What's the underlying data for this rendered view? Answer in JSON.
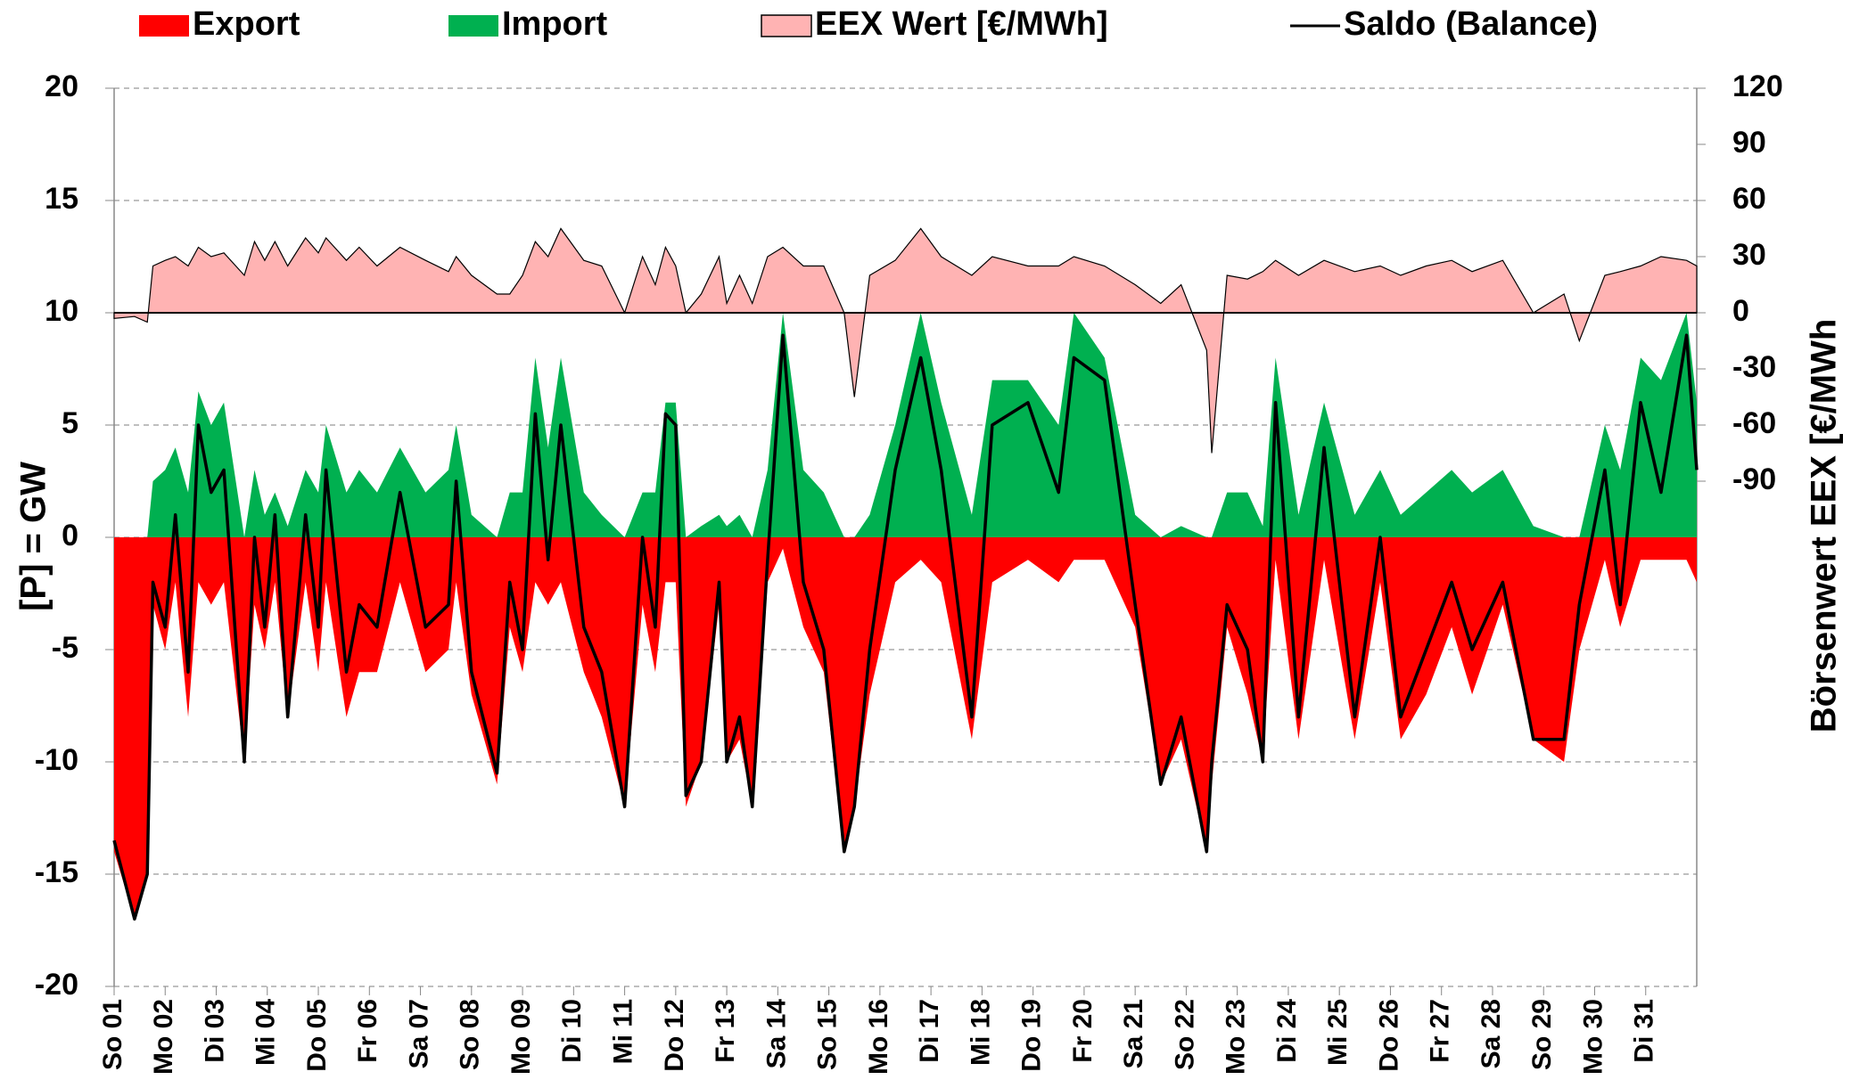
{
  "chart_data": {
    "type": "area",
    "y_label": "[P]  = GW",
    "y2_label": "Börsenwert  EEX  [€/MWh",
    "xlim": [
      0,
      31
    ],
    "xticks": [
      {
        "value": 0,
        "label": "So 01"
      },
      {
        "value": 1,
        "label": "Mo 02"
      },
      {
        "value": 2,
        "label": "Di 03"
      },
      {
        "value": 3,
        "label": "Mi 04"
      },
      {
        "value": 4,
        "label": "Do 05"
      },
      {
        "value": 5,
        "label": "Fr 06"
      },
      {
        "value": 6,
        "label": "Sa 07"
      },
      {
        "value": 7,
        "label": "So 08"
      },
      {
        "value": 8,
        "label": "Mo 09"
      },
      {
        "value": 9,
        "label": "Di 10"
      },
      {
        "value": 10,
        "label": "Mi 11"
      },
      {
        "value": 11,
        "label": "Do 12"
      },
      {
        "value": 12,
        "label": "Fr 13"
      },
      {
        "value": 13,
        "label": "Sa 14"
      },
      {
        "value": 14,
        "label": "So 15"
      },
      {
        "value": 15,
        "label": "Mo 16"
      },
      {
        "value": 16,
        "label": "Di 17"
      },
      {
        "value": 17,
        "label": "Mi 18"
      },
      {
        "value": 18,
        "label": "Do 19"
      },
      {
        "value": 19,
        "label": "Fr 20"
      },
      {
        "value": 20,
        "label": "Sa 21"
      },
      {
        "value": 21,
        "label": "So 22"
      },
      {
        "value": 22,
        "label": "Mo 23"
      },
      {
        "value": 23,
        "label": "Di 24"
      },
      {
        "value": 24,
        "label": "Mi 25"
      },
      {
        "value": 25,
        "label": "Do 26"
      },
      {
        "value": 26,
        "label": "Fr 27"
      },
      {
        "value": 27,
        "label": "Sa 28"
      },
      {
        "value": 28,
        "label": "So 29"
      },
      {
        "value": 29,
        "label": "Mo 30"
      },
      {
        "value": 30,
        "label": "Di 31"
      }
    ],
    "ylim": [
      -20,
      20
    ],
    "yticks": [
      -20,
      -15,
      -10,
      -5,
      0,
      5,
      10,
      15,
      20
    ],
    "y2lim": [
      -360,
      120
    ],
    "y2ticks": [
      -90,
      -60,
      -30,
      0,
      30,
      60,
      90,
      120
    ],
    "negative_tick_color": "#ff0000",
    "grid": true,
    "x": [
      0,
      0.4,
      0.65,
      0.76,
      1.0,
      1.2,
      1.45,
      1.65,
      1.9,
      2.15,
      2.55,
      2.75,
      2.95,
      3.15,
      3.4,
      3.75,
      4.0,
      4.15,
      4.55,
      4.8,
      5.15,
      5.6,
      6.1,
      6.55,
      6.7,
      7.0,
      7.5,
      7.75,
      8.0,
      8.25,
      8.5,
      8.75,
      9.2,
      9.55,
      10.0,
      10.35,
      10.6,
      10.8,
      11.0,
      11.2,
      11.5,
      11.85,
      12.0,
      12.25,
      12.5,
      12.8,
      13.1,
      13.5,
      13.9,
      14.3,
      14.5,
      14.8,
      15.3,
      15.8,
      16.2,
      16.8,
      17.2,
      17.9,
      18.5,
      18.8,
      19.4,
      20.0,
      20.5,
      20.9,
      21.4,
      21.5,
      21.8,
      22.2,
      22.5,
      22.75,
      23.2,
      23.7,
      24.3,
      24.8,
      25.2,
      25.7,
      26.2,
      26.6,
      27.2,
      27.8,
      28.4,
      28.7,
      29.2,
      29.5,
      29.9,
      30.3,
      30.8,
      31.0
    ],
    "series": [
      {
        "name": "Export",
        "color": "#ff0000",
        "style": "area",
        "values": [
          -14,
          -17,
          -15,
          -3,
          -5,
          -2,
          -8,
          -2,
          -3,
          -2,
          -10,
          -3,
          -5,
          -2,
          -8,
          -2,
          -6,
          -2,
          -8,
          -6,
          -6,
          -2,
          -6,
          -5,
          -2,
          -7,
          -11,
          -4,
          -6,
          -2,
          -3,
          -2,
          -6,
          -8,
          -12,
          -3,
          -6,
          -2,
          -2,
          -12,
          -10,
          -3,
          -10,
          -9,
          -12,
          -2,
          -0.5,
          -4,
          -6,
          -14,
          -12,
          -7,
          -2,
          -1,
          -2,
          -9,
          -2,
          -1,
          -2,
          -1,
          -1,
          -4,
          -11,
          -9,
          -14,
          -11,
          -4,
          -7,
          -10,
          -1,
          -9,
          -1,
          -9,
          -2,
          -9,
          -7,
          -4,
          -7,
          -3,
          -9,
          -10,
          -5,
          -1,
          -4,
          -1,
          -1,
          -1,
          -2
        ]
      },
      {
        "name": "Import",
        "color": "#00b050",
        "style": "area",
        "values": [
          0,
          0,
          0,
          2.5,
          3,
          4,
          2,
          6.5,
          5,
          6,
          0,
          3,
          1,
          2,
          0.5,
          3,
          2,
          5,
          2,
          3,
          2,
          4,
          2,
          3,
          5,
          1,
          0,
          2,
          2,
          8,
          4,
          8,
          2,
          1,
          0,
          2,
          2,
          6,
          6,
          0,
          0.5,
          1,
          0.5,
          1,
          0,
          3,
          10,
          3,
          2,
          0,
          0,
          1,
          5,
          10,
          6,
          1,
          7,
          7,
          5,
          10,
          8,
          1,
          0,
          0.5,
          0,
          0,
          2,
          2,
          0.5,
          8,
          1,
          6,
          1,
          3,
          1,
          2,
          3,
          2,
          3,
          0.5,
          0,
          0,
          5,
          3,
          8,
          7,
          10,
          6
        ]
      },
      {
        "name": "EEX Wert [€/MWh]",
        "color": "#ffb3b3",
        "style": "area2",
        "axis": "y2",
        "values": [
          -3,
          -2,
          -5,
          25,
          28,
          30,
          25,
          35,
          30,
          32,
          20,
          38,
          28,
          38,
          25,
          40,
          32,
          40,
          28,
          35,
          25,
          35,
          28,
          22,
          30,
          20,
          10,
          10,
          20,
          38,
          30,
          45,
          28,
          25,
          0,
          30,
          15,
          35,
          25,
          0,
          10,
          30,
          5,
          20,
          5,
          30,
          35,
          25,
          25,
          0,
          -45,
          20,
          28,
          45,
          30,
          20,
          30,
          25,
          25,
          30,
          25,
          15,
          5,
          15,
          -20,
          -75,
          20,
          18,
          22,
          28,
          20,
          28,
          22,
          25,
          20,
          25,
          28,
          22,
          28,
          0,
          10,
          -15,
          20,
          22,
          25,
          30,
          28,
          25
        ]
      },
      {
        "name": "Saldo (Balance)",
        "color": "#000000",
        "style": "line",
        "values": [
          -13.5,
          -17,
          -15,
          -2,
          -4,
          1,
          -6,
          5,
          2,
          3,
          -10,
          0,
          -4,
          1,
          -8,
          1,
          -4,
          3,
          -6,
          -3,
          -4,
          2,
          -4,
          -3,
          2.5,
          -6,
          -10.5,
          -2,
          -5,
          5.5,
          -1,
          5,
          -4,
          -6,
          -12,
          0,
          -4,
          5.5,
          5,
          -11.5,
          -10,
          -2,
          -10,
          -8,
          -12,
          -1,
          9,
          -2,
          -5,
          -14,
          -12,
          -5,
          3,
          8,
          3,
          -8,
          5,
          6,
          2,
          8,
          7,
          -3,
          -11,
          -8,
          -14,
          -10,
          -3,
          -5,
          -10,
          6,
          -8,
          4,
          -8,
          0,
          -8,
          -5,
          -2,
          -5,
          -2,
          -9,
          -9,
          -3,
          3,
          -3,
          6,
          2,
          9,
          3
        ]
      }
    ]
  }
}
